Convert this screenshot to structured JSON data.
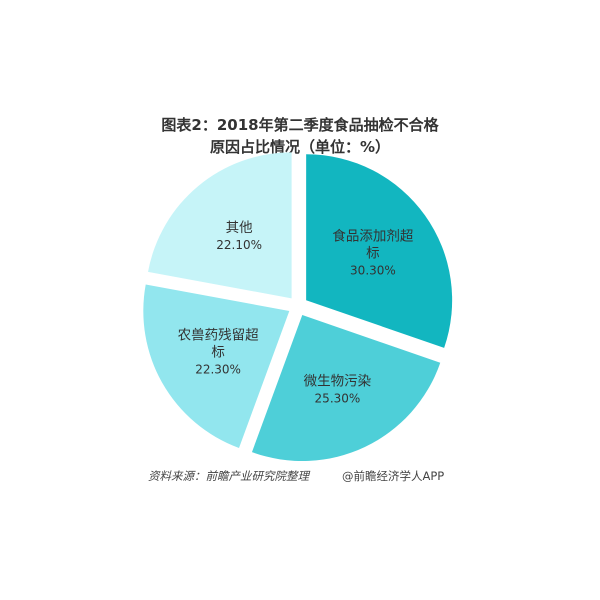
{
  "chart_data": {
    "type": "pie",
    "title_line1": "图表2：2018年第二季度食品抽检不合格",
    "title_line2": "原因占比情况（单位：%）",
    "slices": [
      {
        "label_lines": [
          "食品添加剂超",
          "标"
        ],
        "value_text": "30.30%",
        "value": 30.3,
        "color": "#12b6c0"
      },
      {
        "label_lines": [
          "微生物污染"
        ],
        "value_text": "25.30%",
        "value": 25.3,
        "color": "#4ecfd8"
      },
      {
        "label_lines": [
          "农兽药残留超",
          "标"
        ],
        "value_text": "22.30%",
        "value": 22.3,
        "color": "#92e6ee"
      },
      {
        "label_lines": [
          "其他"
        ],
        "value_text": "22.10%",
        "value": 22.1,
        "color": "#c6f4f8"
      }
    ]
  },
  "footer": {
    "source": "资料来源：前瞻产业研究院整理",
    "brand": "@前瞻经济学人APP"
  }
}
